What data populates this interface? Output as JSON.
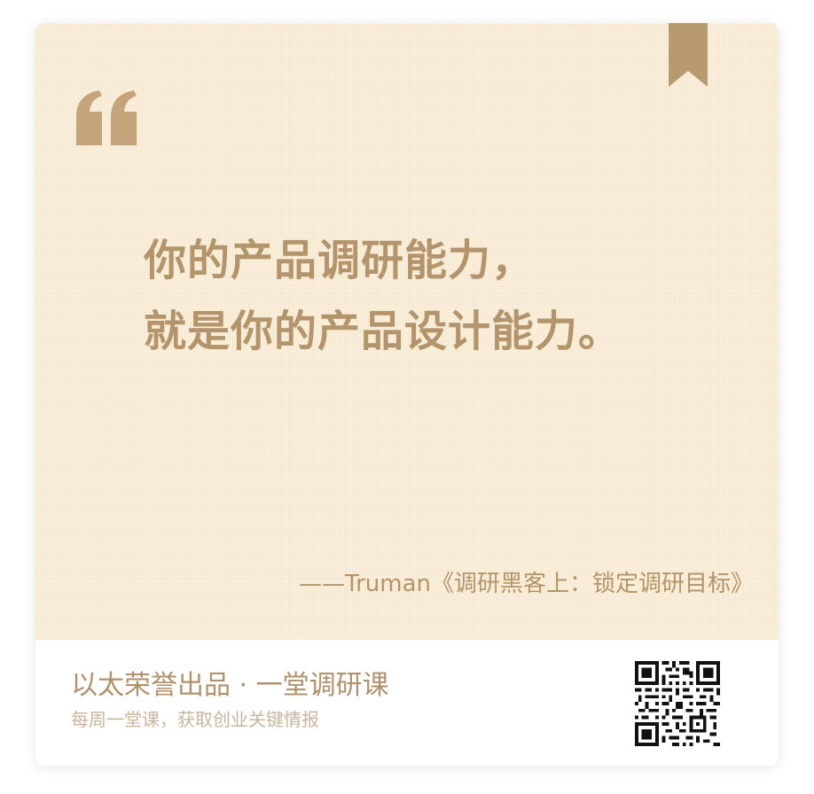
{
  "quote": {
    "line1": "你的产品调研能力，",
    "line2": "就是你的产品设计能力。",
    "attribution": "——Truman《调研黑客上：锁定调研目标》"
  },
  "footer": {
    "brand": "以太荣誉出品 · 一堂调研课",
    "slogan": "每周一堂课，获取创业关键情报"
  },
  "icons": {
    "quote_mark": "left-double-quote-icon",
    "bookmark": "bookmark-ribbon-icon",
    "qr_code": "qr-code"
  },
  "colors": {
    "background": "#faefdb",
    "accent": "#b4946a",
    "secondary_text": "#c9b59b"
  }
}
